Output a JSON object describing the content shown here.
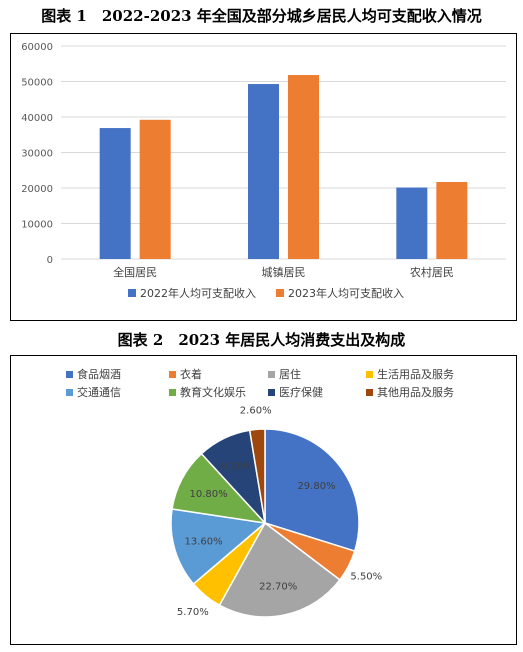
{
  "figure1": {
    "title": "图表 1　2022-2023 年全国及部分城乡居民人均可支配收入情况",
    "chart_data": {
      "type": "bar",
      "categories": [
        "全国居民",
        "城镇居民",
        "农村居民"
      ],
      "series": [
        {
          "name": "2022年人均可支配收入",
          "values": [
            36883,
            49283,
            20133
          ],
          "color": "#4472C4"
        },
        {
          "name": "2023年人均可支配收入",
          "values": [
            39218,
            51821,
            21691
          ],
          "color": "#ED7D31"
        }
      ],
      "yticks": [
        "0",
        "10000",
        "20000",
        "30000",
        "40000",
        "50000",
        "60000"
      ],
      "ylim": [
        0,
        60000
      ],
      "grid": true,
      "legend": "bottom"
    }
  },
  "figure2": {
    "title": "图表 2　2023 年居民人均消费支出及构成",
    "chart_data": {
      "type": "pie",
      "legend": "top",
      "slices": [
        {
          "name": "食品烟酒",
          "value": 29.8,
          "label": "29.80%",
          "color": "#4472C4"
        },
        {
          "name": "衣着",
          "value": 5.5,
          "label": "5.50%",
          "color": "#ED7D31"
        },
        {
          "name": "居住",
          "value": 22.7,
          "label": "22.70%",
          "color": "#A5A5A5"
        },
        {
          "name": "生活用品及服务",
          "value": 5.7,
          "label": "5.70%",
          "color": "#FFC000"
        },
        {
          "name": "交通通信",
          "value": 13.6,
          "label": "13.60%",
          "color": "#5B9BD5"
        },
        {
          "name": "教育文化娱乐",
          "value": 10.8,
          "label": "10.80%",
          "color": "#70AD47"
        },
        {
          "name": "医疗保健",
          "value": 9.2,
          "label": "9.20%",
          "color": "#264478"
        },
        {
          "name": "其他用品及服务",
          "value": 2.6,
          "label": "2.60%",
          "color": "#9E480E"
        }
      ]
    }
  }
}
